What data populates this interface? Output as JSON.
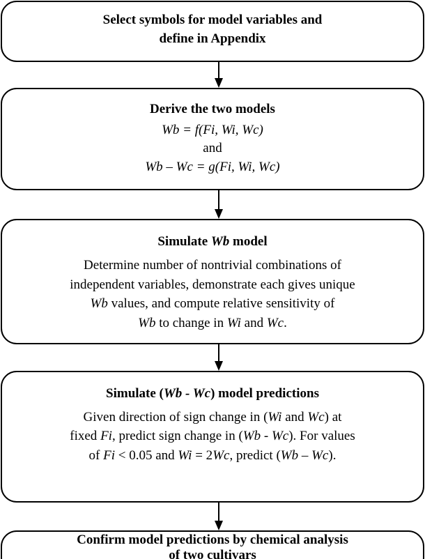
{
  "nodes": [
    {
      "lines": [
        [
          {
            "text": "Select symbols for model variables and",
            "style": "bold"
          }
        ],
        [
          {
            "text": "define in Appendix",
            "style": "bold"
          }
        ]
      ]
    },
    {
      "lines": [
        [
          {
            "text": "Derive the two models",
            "style": "bold"
          }
        ],
        [
          {
            "text": "Wb = f(Fi, Wi, Wc)",
            "style": "italic"
          }
        ],
        [
          {
            "text": "and",
            "style": "normal"
          }
        ],
        [
          {
            "text": "Wb – Wc = g(Fi, Wi, Wc)",
            "style": "italic"
          }
        ]
      ]
    },
    {
      "lines": [
        [
          {
            "text": "Simulate ",
            "style": "bold"
          },
          {
            "text": "Wb",
            "style": "bold-italic"
          },
          {
            "text": " model",
            "style": "bold"
          }
        ],
        [
          {
            "text": "Determine number of nontrivial combinations of",
            "style": "normal"
          }
        ],
        [
          {
            "text": "independent variables, demonstrate each gives unique",
            "style": "normal"
          }
        ],
        [
          {
            "text": "Wb",
            "style": "italic"
          },
          {
            "text": " values, and compute relative sensitivity of",
            "style": "normal"
          }
        ],
        [
          {
            "text": "Wb",
            "style": "italic"
          },
          {
            "text": " to change in ",
            "style": "normal"
          },
          {
            "text": "Wi",
            "style": "italic"
          },
          {
            "text": " and ",
            "style": "normal"
          },
          {
            "text": "Wc",
            "style": "italic"
          },
          {
            "text": ".",
            "style": "normal"
          }
        ]
      ]
    },
    {
      "lines": [
        [
          {
            "text": "Simulate (",
            "style": "bold"
          },
          {
            "text": "Wb - Wc",
            "style": "bold-italic"
          },
          {
            "text": ") model predictions",
            "style": "bold"
          }
        ],
        [
          {
            "text": "Given direction of sign change in (",
            "style": "normal"
          },
          {
            "text": "Wi",
            "style": "italic"
          },
          {
            "text": " and ",
            "style": "normal"
          },
          {
            "text": "Wc",
            "style": "italic"
          },
          {
            "text": ") at",
            "style": "normal"
          }
        ],
        [
          {
            "text": "fixed ",
            "style": "normal"
          },
          {
            "text": "Fi",
            "style": "italic"
          },
          {
            "text": ", predict sign change in (",
            "style": "normal"
          },
          {
            "text": "Wb - Wc",
            "style": "italic"
          },
          {
            "text": "). For values",
            "style": "normal"
          }
        ],
        [
          {
            "text": "of ",
            "style": "normal"
          },
          {
            "text": "Fi",
            "style": "italic"
          },
          {
            "text": " < 0.05 and ",
            "style": "normal"
          },
          {
            "text": "Wi",
            "style": "italic"
          },
          {
            "text": " = 2",
            "style": "normal"
          },
          {
            "text": "Wc",
            "style": "italic"
          },
          {
            "text": ", predict (",
            "style": "normal"
          },
          {
            "text": "Wb",
            "style": "italic"
          },
          {
            "text": " – ",
            "style": "normal"
          },
          {
            "text": "Wc",
            "style": "italic"
          },
          {
            "text": ").",
            "style": "normal"
          }
        ]
      ]
    },
    {
      "lines": [
        [
          {
            "text": "Confirm model predictions by chemical analysis",
            "style": "bold"
          }
        ],
        [
          {
            "text": "of two cultivars",
            "style": "bold"
          }
        ]
      ]
    }
  ]
}
